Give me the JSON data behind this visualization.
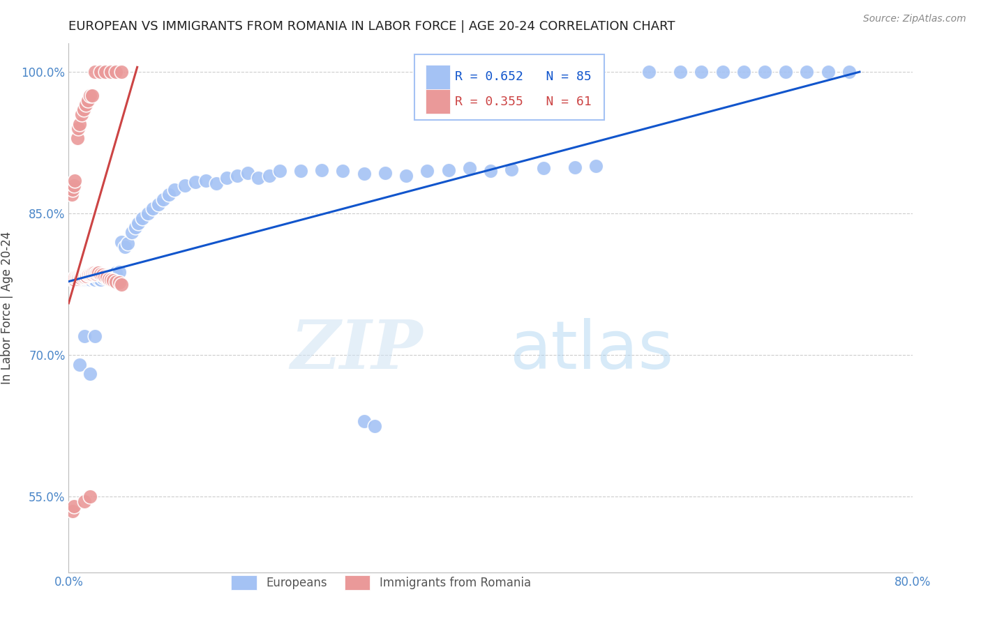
{
  "title": "EUROPEAN VS IMMIGRANTS FROM ROMANIA IN LABOR FORCE | AGE 20-24 CORRELATION CHART",
  "source": "Source: ZipAtlas.com",
  "ylabel": "In Labor Force | Age 20-24",
  "xlim": [
    0.0,
    0.8
  ],
  "ylim": [
    0.47,
    1.03
  ],
  "yticks": [
    0.55,
    0.7,
    0.85,
    1.0
  ],
  "ytick_labels": [
    "55.0%",
    "70.0%",
    "85.0%",
    "100.0%"
  ],
  "xticks": [
    0.0,
    0.1,
    0.2,
    0.3,
    0.4,
    0.5,
    0.6,
    0.7,
    0.8
  ],
  "xtick_labels": [
    "0.0%",
    "",
    "",
    "",
    "",
    "",
    "",
    "",
    "80.0%"
  ],
  "blue_color": "#a4c2f4",
  "pink_color": "#ea9999",
  "trendline_blue": "#1155cc",
  "trendline_pink": "#cc4444",
  "legend_blue_R": "0.652",
  "legend_blue_N": "85",
  "legend_pink_R": "0.355",
  "legend_pink_N": "61",
  "watermark_zip": "ZIP",
  "watermark_atlas": "atlas",
  "background_color": "#ffffff",
  "grid_color": "#cccccc",
  "axis_color": "#bbbbbb",
  "tick_color": "#4a86c8",
  "title_color": "#222222",
  "source_color": "#888888",
  "blue_points_x": [
    0.005,
    0.007,
    0.008,
    0.009,
    0.01,
    0.011,
    0.012,
    0.013,
    0.014,
    0.015,
    0.016,
    0.017,
    0.018,
    0.019,
    0.02,
    0.021,
    0.022,
    0.023,
    0.024,
    0.025,
    0.026,
    0.027,
    0.028,
    0.03,
    0.032,
    0.034,
    0.036,
    0.038,
    0.04,
    0.042,
    0.045,
    0.048,
    0.05,
    0.053,
    0.056,
    0.06,
    0.063,
    0.066,
    0.07,
    0.075,
    0.08,
    0.085,
    0.09,
    0.095,
    0.1,
    0.11,
    0.12,
    0.13,
    0.14,
    0.15,
    0.16,
    0.17,
    0.18,
    0.19,
    0.2,
    0.22,
    0.24,
    0.26,
    0.28,
    0.3,
    0.32,
    0.34,
    0.36,
    0.38,
    0.4,
    0.42,
    0.45,
    0.48,
    0.5,
    0.55,
    0.58,
    0.6,
    0.62,
    0.64,
    0.66,
    0.68,
    0.7,
    0.72,
    0.74,
    0.01,
    0.015,
    0.02,
    0.025,
    0.28,
    0.29
  ],
  "blue_points_y": [
    0.78,
    0.782,
    0.78,
    0.783,
    0.781,
    0.78,
    0.783,
    0.782,
    0.78,
    0.781,
    0.78,
    0.782,
    0.78,
    0.781,
    0.783,
    0.78,
    0.782,
    0.781,
    0.78,
    0.78,
    0.784,
    0.783,
    0.781,
    0.78,
    0.782,
    0.783,
    0.784,
    0.785,
    0.785,
    0.786,
    0.787,
    0.788,
    0.82,
    0.815,
    0.818,
    0.83,
    0.835,
    0.84,
    0.845,
    0.85,
    0.855,
    0.86,
    0.865,
    0.87,
    0.875,
    0.88,
    0.883,
    0.885,
    0.882,
    0.888,
    0.89,
    0.893,
    0.888,
    0.89,
    0.895,
    0.895,
    0.896,
    0.895,
    0.892,
    0.893,
    0.89,
    0.895,
    0.896,
    0.898,
    0.895,
    0.897,
    0.898,
    0.899,
    0.9,
    1.0,
    1.0,
    1.0,
    1.0,
    1.0,
    1.0,
    1.0,
    1.0,
    1.0,
    1.0,
    0.69,
    0.72,
    0.68,
    0.72,
    0.63,
    0.625
  ],
  "pink_points_x": [
    0.004,
    0.005,
    0.005,
    0.006,
    0.006,
    0.007,
    0.008,
    0.008,
    0.009,
    0.01,
    0.011,
    0.012,
    0.013,
    0.014,
    0.015,
    0.016,
    0.017,
    0.018,
    0.019,
    0.02,
    0.021,
    0.022,
    0.023,
    0.024,
    0.025,
    0.026,
    0.027,
    0.028,
    0.03,
    0.032,
    0.034,
    0.036,
    0.038,
    0.04,
    0.042,
    0.045,
    0.048,
    0.05,
    0.003,
    0.004,
    0.005,
    0.006,
    0.008,
    0.009,
    0.01,
    0.012,
    0.014,
    0.016,
    0.018,
    0.02,
    0.022,
    0.025,
    0.03,
    0.035,
    0.04,
    0.045,
    0.05,
    0.004,
    0.005,
    0.015,
    0.02
  ],
  "pink_points_y": [
    0.78,
    0.78,
    0.782,
    0.78,
    0.782,
    0.782,
    0.783,
    0.781,
    0.782,
    0.783,
    0.782,
    0.784,
    0.783,
    0.784,
    0.783,
    0.784,
    0.784,
    0.785,
    0.785,
    0.785,
    0.786,
    0.786,
    0.787,
    0.787,
    0.786,
    0.786,
    0.787,
    0.787,
    0.786,
    0.785,
    0.784,
    0.783,
    0.781,
    0.78,
    0.779,
    0.778,
    0.777,
    0.775,
    0.87,
    0.875,
    0.88,
    0.885,
    0.93,
    0.94,
    0.945,
    0.955,
    0.96,
    0.965,
    0.97,
    0.975,
    0.975,
    1.0,
    1.0,
    1.0,
    1.0,
    1.0,
    1.0,
    0.535,
    0.54,
    0.545,
    0.55
  ]
}
